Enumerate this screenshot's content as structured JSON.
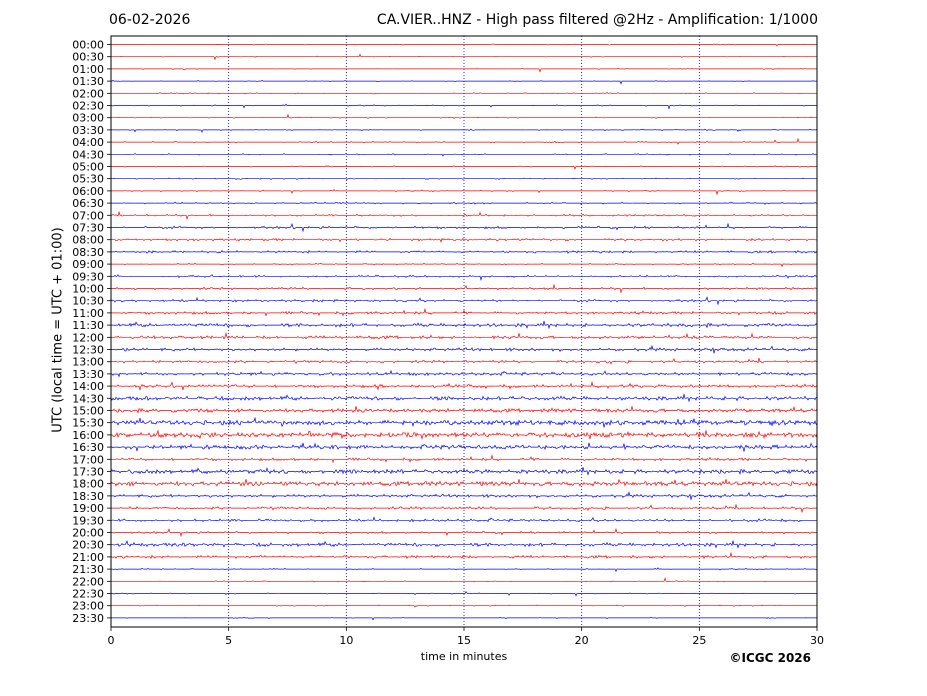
{
  "header": {
    "date": "06-02-2026",
    "title": "CA.VIER..HNZ - High pass filtered @2Hz - Amplification: 1/1000"
  },
  "footer": {
    "copyright": "©ICGC 2026"
  },
  "colors": {
    "red_trace": "#ff0000",
    "blue_trace": "#0000ff",
    "grid": "#000080",
    "frame": "#000000"
  },
  "chart_data": {
    "type": "line",
    "title": "CA.VIER..HNZ - High pass filtered @2Hz - Amplification: 1/1000",
    "xlabel": "time in minutes",
    "ylabel": "UTC (local time = UTC + 01:00)",
    "xlim": [
      0,
      30
    ],
    "x_ticks": [
      0,
      5,
      10,
      15,
      20,
      25,
      30
    ],
    "grid": "vertical dotted lines at 5-minute intervals",
    "row_labels": [
      "00:00",
      "00:30",
      "01:00",
      "01:30",
      "02:00",
      "02:30",
      "03:00",
      "03:30",
      "04:00",
      "04:30",
      "05:00",
      "05:30",
      "06:00",
      "06:30",
      "07:00",
      "07:30",
      "08:00",
      "08:30",
      "09:00",
      "09:30",
      "10:00",
      "10:30",
      "11:00",
      "11:30",
      "12:00",
      "12:30",
      "13:00",
      "13:30",
      "14:00",
      "14:30",
      "15:00",
      "15:30",
      "16:00",
      "16:30",
      "17:00",
      "17:30",
      "18:00",
      "18:30",
      "19:00",
      "19:30",
      "20:00",
      "20:30",
      "21:00",
      "21:30",
      "22:00",
      "22:30",
      "23:00",
      "23:30"
    ],
    "row_colors": [
      "red",
      "red",
      "red",
      "blue",
      "red",
      "blue",
      "red",
      "blue",
      "red",
      "blue",
      "red",
      "blue",
      "red",
      "blue",
      "red",
      "blue",
      "red",
      "blue",
      "red",
      "blue",
      "red",
      "blue",
      "red",
      "blue",
      "red",
      "blue",
      "red",
      "blue",
      "red",
      "blue",
      "red",
      "blue",
      "red",
      "blue",
      "red",
      "blue",
      "red",
      "blue",
      "red",
      "blue",
      "red",
      "blue",
      "red",
      "blue",
      "red",
      "blue",
      "red",
      "blue"
    ],
    "activity": [
      0.05,
      0.05,
      0.05,
      0.05,
      0.08,
      0.1,
      0.06,
      0.1,
      0.1,
      0.1,
      0.1,
      0.1,
      0.1,
      0.15,
      0.2,
      0.25,
      0.25,
      0.25,
      0.15,
      0.2,
      0.25,
      0.25,
      0.3,
      0.4,
      0.35,
      0.35,
      0.3,
      0.35,
      0.35,
      0.45,
      0.45,
      0.6,
      0.6,
      0.5,
      0.3,
      0.5,
      0.55,
      0.35,
      0.3,
      0.3,
      0.2,
      0.4,
      0.3,
      0.1,
      0.05,
      0.08,
      0.05,
      0.05
    ]
  }
}
